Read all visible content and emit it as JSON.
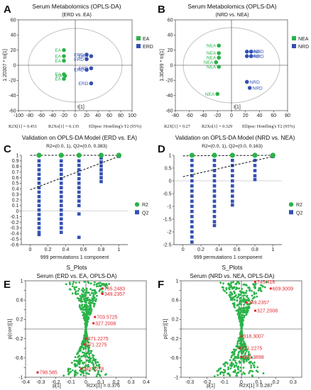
{
  "colors": {
    "green": "#2bb34a",
    "blue": "#3451b2",
    "red": "#e0282e",
    "ellipse": "#bdbdbd"
  },
  "chart_data": [
    {
      "panel": "A",
      "type": "scatter",
      "title": "Serum Metabolomics (OPLS-DA)",
      "subtitle": "(ERD vs. EA)",
      "xlabel": "t[1]",
      "ylabel": "1.20307 * to[1]",
      "xlim": [
        -100,
        100
      ],
      "ylim": [
        -60,
        60
      ],
      "xticks": [
        -100,
        -80,
        -60,
        -40,
        -20,
        0,
        20,
        40,
        60,
        80,
        100
      ],
      "yticks": [
        -60,
        -40,
        -20,
        0,
        20,
        40,
        60
      ],
      "xtick_labels": [
        "-100",
        "-80",
        "-60",
        "-40",
        "-20",
        "0",
        "20",
        "40",
        "60",
        "80",
        "100"
      ],
      "ytick_labels": [
        "-60",
        "-40",
        "-20",
        "0",
        "20",
        "40",
        "60"
      ],
      "footer": [
        "R2X[1] = 0.451",
        "R2Xo[1] = 0.135",
        "Ellipse: Hotelling's T2 (95%)"
      ],
      "legend": [
        "EA",
        "ERD"
      ],
      "legend_position": "right",
      "series": [
        {
          "name": "EA",
          "points": [
            {
              "x": -20,
              "y": 20,
              "label": "EA"
            },
            {
              "x": -20,
              "y": 12,
              "label": "EA"
            },
            {
              "x": -20,
              "y": 6,
              "label": "EA"
            },
            {
              "x": -20,
              "y": -12,
              "label": "EA"
            },
            {
              "x": -20,
              "y": -18,
              "label": "EA"
            },
            {
              "x": -18,
              "y": -14,
              "label": "EA"
            }
          ]
        },
        {
          "name": "ERD",
          "points": [
            {
              "x": 20,
              "y": 14,
              "label": "ERD"
            },
            {
              "x": 20,
              "y": 8,
              "label": "ERD"
            },
            {
              "x": 28,
              "y": 12,
              "label": "ERD"
            },
            {
              "x": 20,
              "y": -6,
              "label": "ERD"
            },
            {
              "x": 28,
              "y": -4,
              "label": "ERD"
            },
            {
              "x": 28,
              "y": -24,
              "label": "ERD"
            }
          ]
        }
      ]
    },
    {
      "panel": "B",
      "type": "scatter",
      "title": "Serum Metabolomics (OPLS-DA)",
      "subtitle": "(NRD vs. NEA)",
      "xlabel": "t[1]",
      "ylabel": "1.30499 * to[1]",
      "xlim": [
        -80,
        80
      ],
      "ylim": [
        -60,
        60
      ],
      "xticks": [
        -80,
        -60,
        -40,
        -20,
        0,
        20,
        40,
        60,
        80
      ],
      "yticks": [
        -60,
        -40,
        -20,
        0,
        20,
        40,
        60
      ],
      "xtick_labels": [
        "-80",
        "-60",
        "-40",
        "-20",
        "0",
        "20",
        "40",
        "60",
        "80"
      ],
      "ytick_labels": [
        "-60",
        "-40",
        "-20",
        "0",
        "20",
        "40",
        "60"
      ],
      "footer": [
        "R2X[1] = 0.27",
        "R2Xo[1] = 0.329",
        "Ellipse: Hotelling's T2 (95%)"
      ],
      "legend": [
        "NEA",
        "NRD"
      ],
      "legend_position": "right",
      "series": [
        {
          "name": "NEA",
          "points": [
            {
              "x": -18,
              "y": 26,
              "label": "NEA"
            },
            {
              "x": -18,
              "y": 16,
              "label": "NEA"
            },
            {
              "x": -18,
              "y": 10,
              "label": "NEA"
            },
            {
              "x": -22,
              "y": 4,
              "label": "NEA"
            },
            {
              "x": -18,
              "y": -2,
              "label": "NEA"
            },
            {
              "x": -20,
              "y": -38,
              "label": "NEA"
            }
          ]
        },
        {
          "name": "NRD",
          "points": [
            {
              "x": 22,
              "y": 18,
              "label": "NRD"
            },
            {
              "x": 28,
              "y": 18,
              "label": "NRD"
            },
            {
              "x": 22,
              "y": 12,
              "label": "NRD"
            },
            {
              "x": 28,
              "y": 12,
              "label": "NRD"
            },
            {
              "x": 22,
              "y": -22,
              "label": "NRD"
            },
            {
              "x": 26,
              "y": -30,
              "label": "NRD"
            }
          ]
        }
      ]
    },
    {
      "panel": "C",
      "type": "scatter",
      "title": "Validation on OPLS-DA Model (ERD vs. EA)",
      "subtitle": "R2=(0.0, 1), Q2=(0.0, 0.383)",
      "xlabel": "999 permutations 1 component",
      "ylabel": "",
      "xlim": [
        -0.1,
        1.1
      ],
      "ylim": [
        -0.6,
        1.0
      ],
      "xticks": [
        0,
        0.2,
        0.4,
        0.6,
        0.8,
        1
      ],
      "yticks": [
        -0.6,
        -0.5,
        -0.4,
        -0.3,
        -0.2,
        -0.1,
        0,
        0.1,
        0.2,
        0.3,
        0.4,
        0.5,
        0.6,
        0.7,
        0.8,
        0.9,
        1
      ],
      "xtick_labels": [
        "0",
        "0.2",
        "0.4",
        "0.6",
        "0.8",
        "1"
      ],
      "ytick_labels": [
        "-0.6",
        "-0.5",
        "-0.4",
        "-0.3",
        "-0.2",
        "-0.1",
        "0",
        "0.1",
        "0.2",
        "0.3",
        "0.4",
        "0.5",
        "0.6",
        "0.7",
        "0.8",
        "0.9",
        "1"
      ],
      "legend": [
        "R2",
        "Q2"
      ],
      "legend_position": "right",
      "r2_line": [
        [
          0.0,
          1.0
        ],
        [
          1.0,
          1.0
        ]
      ],
      "q2_line": [
        [
          0.0,
          0.383
        ],
        [
          1.0,
          0.98
        ]
      ],
      "series": [
        {
          "name": "R2",
          "points": [
            [
              0.1,
              1
            ],
            [
              0.35,
              1
            ],
            [
              0.55,
              1
            ],
            [
              0.8,
              1
            ],
            [
              1.0,
              1
            ]
          ]
        },
        {
          "name": "Q2",
          "points": [
            [
              0.1,
              0.9
            ],
            [
              0.1,
              0.82
            ],
            [
              0.1,
              0.74
            ],
            [
              0.1,
              0.66
            ],
            [
              0.1,
              0.58
            ],
            [
              0.1,
              0.5
            ],
            [
              0.1,
              0.42
            ],
            [
              0.1,
              0.34
            ],
            [
              0.1,
              0.26
            ],
            [
              0.1,
              0.18
            ],
            [
              0.1,
              0.1
            ],
            [
              0.1,
              0.02
            ],
            [
              0.1,
              -0.06
            ],
            [
              0.1,
              -0.14
            ],
            [
              0.1,
              -0.22
            ],
            [
              0.1,
              -0.3
            ],
            [
              0.1,
              -0.38
            ],
            [
              0.1,
              -0.42
            ],
            [
              0.35,
              0.9
            ],
            [
              0.35,
              0.82
            ],
            [
              0.35,
              0.74
            ],
            [
              0.35,
              0.66
            ],
            [
              0.35,
              0.58
            ],
            [
              0.35,
              0.5
            ],
            [
              0.35,
              0.42
            ],
            [
              0.35,
              0.34
            ],
            [
              0.35,
              0.26
            ],
            [
              0.35,
              0.18
            ],
            [
              0.35,
              0.1
            ],
            [
              0.35,
              0.02
            ],
            [
              0.35,
              -0.06
            ],
            [
              0.35,
              -0.14
            ],
            [
              0.35,
              -0.22
            ],
            [
              0.35,
              -0.3
            ],
            [
              0.35,
              -0.38
            ],
            [
              0.55,
              0.9
            ],
            [
              0.55,
              0.82
            ],
            [
              0.55,
              0.74
            ],
            [
              0.55,
              0.66
            ],
            [
              0.55,
              0.58
            ],
            [
              0.55,
              0.5
            ],
            [
              0.55,
              0.42
            ],
            [
              0.55,
              0.34
            ],
            [
              0.55,
              0.26
            ],
            [
              0.55,
              0.18
            ],
            [
              0.55,
              0.1
            ],
            [
              0.55,
              -0.05
            ],
            [
              0.55,
              -0.47
            ],
            [
              0.8,
              0.95
            ],
            [
              0.8,
              0.88
            ],
            [
              0.8,
              0.81
            ],
            [
              0.8,
              0.74
            ],
            [
              0.8,
              0.67
            ],
            [
              0.8,
              0.6
            ],
            [
              0.8,
              0.53
            ],
            [
              1.0,
              0.98
            ]
          ]
        }
      ]
    },
    {
      "panel": "D",
      "type": "scatter",
      "title": "Validation on OPLS-DA Model (NRD vs. NEA)",
      "subtitle": "R2=(0.0, 1), Q2=(0.0, 0.163)",
      "xlabel": "999 permutations 1 component",
      "ylabel": "",
      "xlim": [
        -0.1,
        1.1
      ],
      "ylim": [
        -2.5,
        1.0
      ],
      "xticks": [
        0,
        0.2,
        0.4,
        0.6,
        0.8,
        1
      ],
      "yticks": [
        -2.5,
        -2,
        -1.5,
        -1,
        -0.5,
        0,
        0.5,
        1
      ],
      "xtick_labels": [
        "0",
        "0.2",
        "0.4",
        "0.6",
        "0.8",
        "1"
      ],
      "ytick_labels": [
        "-2.5",
        "-2",
        "-1.5",
        "-1",
        "-0.5",
        "0",
        "0.5",
        "1"
      ],
      "legend": [
        "R2",
        "Q2"
      ],
      "legend_position": "right",
      "r2_line": [
        [
          0.0,
          0.98
        ],
        [
          1.0,
          1.0
        ]
      ],
      "q2_line": [
        [
          0.0,
          0.163
        ],
        [
          1.0,
          0.95
        ]
      ],
      "series": [
        {
          "name": "R2",
          "points": [
            [
              0.1,
              1
            ],
            [
              0.35,
              1
            ],
            [
              0.55,
              1
            ],
            [
              0.8,
              1
            ],
            [
              1.0,
              1
            ]
          ]
        },
        {
          "name": "Q2",
          "points": [
            [
              0.1,
              0.8
            ],
            [
              0.1,
              0.6
            ],
            [
              0.1,
              0.4
            ],
            [
              0.1,
              0.2
            ],
            [
              0.1,
              0.0
            ],
            [
              0.1,
              -0.2
            ],
            [
              0.1,
              -0.4
            ],
            [
              0.1,
              -0.6
            ],
            [
              0.1,
              -0.8
            ],
            [
              0.1,
              -1.0
            ],
            [
              0.1,
              -1.2
            ],
            [
              0.1,
              -1.4
            ],
            [
              0.1,
              -1.6
            ],
            [
              0.1,
              -1.8
            ],
            [
              0.1,
              -2.0
            ],
            [
              0.1,
              -2.2
            ],
            [
              0.1,
              -2.4
            ],
            [
              0.35,
              0.8
            ],
            [
              0.35,
              0.6
            ],
            [
              0.35,
              0.4
            ],
            [
              0.35,
              0.2
            ],
            [
              0.35,
              0.0
            ],
            [
              0.35,
              -0.2
            ],
            [
              0.35,
              -0.4
            ],
            [
              0.35,
              -0.6
            ],
            [
              0.35,
              -0.8
            ],
            [
              0.35,
              -1.0
            ],
            [
              0.35,
              -1.2
            ],
            [
              0.35,
              -1.4
            ],
            [
              0.35,
              -1.6
            ],
            [
              0.35,
              -1.75
            ],
            [
              0.55,
              0.8
            ],
            [
              0.55,
              0.6
            ],
            [
              0.55,
              0.4
            ],
            [
              0.55,
              0.2
            ],
            [
              0.55,
              0.0
            ],
            [
              0.55,
              -0.2
            ],
            [
              0.55,
              -0.4
            ],
            [
              0.55,
              -0.6
            ],
            [
              0.55,
              -0.8
            ],
            [
              0.55,
              -0.95
            ],
            [
              0.8,
              0.8
            ],
            [
              0.8,
              0.6
            ],
            [
              0.8,
              0.4
            ],
            [
              0.8,
              0.2
            ],
            [
              0.8,
              0.05
            ],
            [
              1.0,
              0.95
            ]
          ]
        }
      ]
    },
    {
      "panel": "E",
      "type": "scatter",
      "title": "S_Plots",
      "subtitle": "Serum (ERD vs. EA, OPLS-DA)",
      "xlabel": "p[1]",
      "ylabel": "p(corr)[1]",
      "footer": [
        "R2X[1] = 0.376"
      ],
      "xlim": [
        -0.4,
        0.4
      ],
      "ylim": [
        -1,
        1
      ],
      "xticks": [
        -0.4,
        -0.3,
        -0.2,
        -0.1,
        0,
        0.1,
        0.2,
        0.3,
        0.4
      ],
      "yticks": [
        -1,
        -0.8,
        -0.6,
        -0.4,
        -0.2,
        0,
        0.2,
        0.4,
        0.6,
        0.8,
        1
      ],
      "xtick_labels": [
        "-0.4",
        "-0.3",
        "-0.2",
        "-0.1",
        "0",
        "0.1",
        "0.2",
        "0.3",
        "0.4"
      ],
      "ytick_labels": [
        "-1",
        "-0.8",
        "-0.6",
        "-0.4",
        "-0.2",
        "0",
        "0.2",
        "0.4",
        "0.6",
        "0.8",
        "1"
      ],
      "annotations": [
        {
          "label": "765.2483",
          "x": 0.11,
          "y": 0.84
        },
        {
          "label": "349.2357",
          "x": 0.11,
          "y": 0.73
        },
        {
          "label": "703.5725",
          "x": 0.06,
          "y": 0.25
        },
        {
          "label": "327.2008",
          "x": 0.05,
          "y": 0.12
        },
        {
          "label": "371.2275",
          "x": 0.0,
          "y": -0.2
        },
        {
          "label": "371.2275",
          "x": -0.01,
          "y": -0.32
        },
        {
          "label": "248.0278",
          "x": -0.03,
          "y": -0.82
        },
        {
          "label": "798.585",
          "x": -0.32,
          "y": -0.9
        }
      ]
    },
    {
      "panel": "F",
      "type": "scatter",
      "title": "S_Plots",
      "subtitle": "Serum (NRD vs. NEA, OPLS-DA)",
      "xlabel": "p[1]",
      "ylabel": "p(corr)[1]",
      "footer": [
        "R2X[1] = 0.287"
      ],
      "xlim": [
        -0.35,
        0.35
      ],
      "ylim": [
        -1,
        1
      ],
      "xticks": [
        -0.3,
        -0.2,
        -0.1,
        0,
        0.1,
        0.2,
        0.3
      ],
      "yticks": [
        -1,
        -0.8,
        -0.6,
        -0.4,
        -0.2,
        0,
        0.2,
        0.4,
        0.6,
        0.8,
        1
      ],
      "xtick_labels": [
        "-0.3",
        "-0.2",
        "-0.1",
        "0",
        "0.1",
        "0.2",
        "0.3"
      ],
      "ytick_labels": [
        "-1",
        "-0.8",
        "-0.6",
        "-0.4",
        "-0.2",
        "0",
        "0.2",
        "0.4",
        "0.6",
        "0.8",
        "1"
      ],
      "annotations": [
        {
          "label": "745.416",
          "x": 0.08,
          "y": 0.98
        },
        {
          "label": "609.3009",
          "x": 0.17,
          "y": 0.84
        },
        {
          "label": "349.2357",
          "x": 0.03,
          "y": 0.55
        },
        {
          "label": "327.2008",
          "x": 0.08,
          "y": 0.38
        },
        {
          "label": "318.3007",
          "x": 0.0,
          "y": -0.15
        },
        {
          "label": "371.2275",
          "x": -0.01,
          "y": -0.4
        },
        {
          "label": "655.3898",
          "x": 0.0,
          "y": -0.58
        }
      ]
    }
  ]
}
